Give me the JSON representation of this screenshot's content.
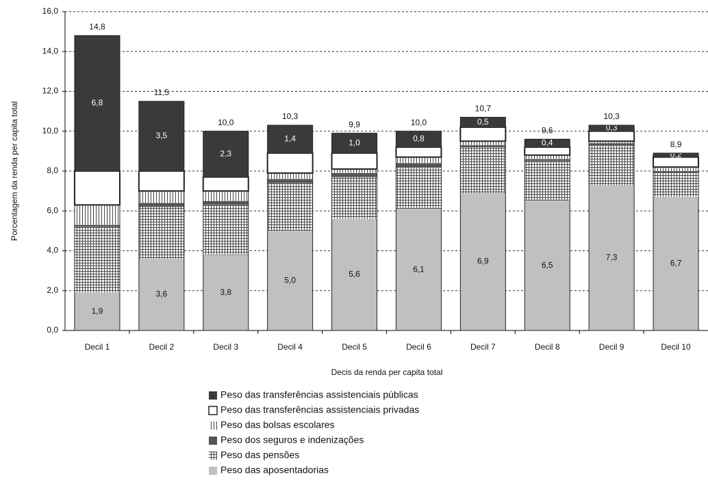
{
  "chart_data": {
    "type": "stacked_bar",
    "x_label": "Decis da renda per capita total",
    "y_label": "Porcentagem da renda per capita total",
    "categories": [
      "Decil 1",
      "Decil 2",
      "Decil 3",
      "Decil 4",
      "Decil 5",
      "Decil 6",
      "Decil 7",
      "Decil 8",
      "Decil 9",
      "Decil 10"
    ],
    "series": [
      {
        "name": "Peso das aposentadorias",
        "color": "#c0c0c0",
        "pattern": "solid",
        "values": [
          1.9,
          3.6,
          3.8,
          5.0,
          5.6,
          6.1,
          6.9,
          6.5,
          7.3,
          6.7
        ],
        "value_labels": [
          "1,9",
          "3,6",
          "3,8",
          "5,0",
          "5,6",
          "6,1",
          "6,9",
          "6,5",
          "7,3",
          "6,7"
        ],
        "label_color": "#111111"
      },
      {
        "name": "Peso das pensões",
        "color": "#444444",
        "pattern": "grid",
        "values": [
          3.3,
          2.6,
          2.5,
          2.4,
          2.1,
          2.1,
          2.3,
          2.0,
          2.0,
          1.2
        ]
      },
      {
        "name": "Peso dos seguros e indenizações",
        "color": "#555555",
        "pattern": "solid",
        "values": [
          0.1,
          0.2,
          0.2,
          0.2,
          0.2,
          0.2,
          0.1,
          0.1,
          0.1,
          0.1
        ]
      },
      {
        "name": "Peso das bolsas escolares",
        "color": "#444444",
        "pattern": "vlines",
        "values": [
          1.0,
          0.6,
          0.5,
          0.3,
          0.2,
          0.3,
          0.2,
          0.2,
          0.1,
          0.2
        ]
      },
      {
        "name": "Peso das transferências assistenciais privadas",
        "color": "#ffffff",
        "pattern": "solid",
        "values": [
          1.7,
          1.0,
          0.7,
          1.0,
          0.8,
          0.5,
          0.7,
          0.4,
          0.5,
          0.5
        ]
      },
      {
        "name": "Peso das transferências assistenciais públicas",
        "color": "#3a3a3a",
        "pattern": "solid",
        "values": [
          6.8,
          3.5,
          2.3,
          1.4,
          1.0,
          0.8,
          0.5,
          0.4,
          0.3,
          0.2
        ],
        "value_labels": [
          "6,8",
          "3,5",
          "2,3",
          "1,4",
          "1,0",
          "0,8",
          "0,5",
          "0,4",
          "0,3",
          "0,2"
        ],
        "label_color": "#ffffff"
      }
    ],
    "totals": {
      "values": [
        14.8,
        11.5,
        10.0,
        10.3,
        9.9,
        10.0,
        10.7,
        9.6,
        10.3,
        8.9
      ],
      "value_labels": [
        "14,8",
        "11,5",
        "10,0",
        "10,3",
        "9,9",
        "10,0",
        "10,7",
        "9,6",
        "10,3",
        "8,9"
      ]
    },
    "ylim": [
      0,
      16
    ],
    "yticks": [
      {
        "value": 0,
        "label": "0,0"
      },
      {
        "value": 2,
        "label": "2,0"
      },
      {
        "value": 4,
        "label": "4,0"
      },
      {
        "value": 6,
        "label": "6,0"
      },
      {
        "value": 8,
        "label": "8,0"
      },
      {
        "value": 10,
        "label": "10,0"
      },
      {
        "value": 12,
        "label": "12,0"
      },
      {
        "value": 14,
        "label": "14,0"
      },
      {
        "value": 16,
        "label": "16,0"
      }
    ],
    "grid": true,
    "legend": "bottom"
  }
}
